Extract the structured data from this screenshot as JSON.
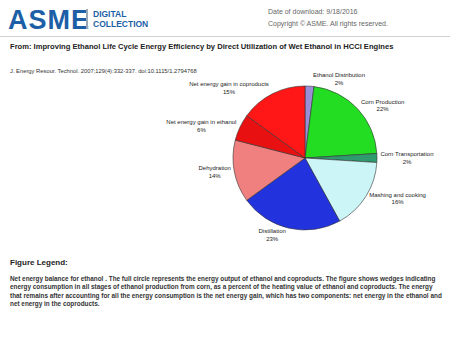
{
  "header": {
    "logo": "ASME",
    "logo_sub": [
      "DIGITAL",
      "COLLECTION"
    ],
    "download_date": "Date of download: 9/18/2016",
    "copyright": "Copyright © ASME. All rights reserved."
  },
  "source": {
    "title": "From: Improving Ethanol Life Cycle Energy Efficiency by Direct Utilization of Wet Ethanol in HCCI Engines",
    "citation": "J. Energy Resour. Technol. 2007;129(4):332-337. doi:10.1115/1.2794768"
  },
  "chart_data": {
    "type": "pie",
    "categories": [
      "Ethanol Distribution",
      "Corn Production",
      "Corn Transportation",
      "Mashing and cooking",
      "Distillation",
      "Dehydration",
      "Net energy gain in ethanol",
      "Net energy gain in coproducts"
    ],
    "values": [
      2,
      22,
      2,
      16,
      23,
      14,
      6,
      15
    ],
    "value_labels": [
      "2%",
      "22%",
      "2%",
      "16%",
      "23%",
      "14%",
      "6%",
      "15%"
    ],
    "colors": [
      "#9a8fd6",
      "#22dd22",
      "#2e9a6e",
      "#ccf5f7",
      "#2233dd",
      "#f08080",
      "#e81010",
      "#ff1616"
    ],
    "data_labels": true
  },
  "figure_legend": {
    "heading": "Figure Legend:",
    "text": "Net energy balance for ethanol . The full circle represents the energy output of ethanol and coproducts. The figure shows wedges indicating energy consumption in all stages of ethanol production from corn, as a percent of the heating value of ethanol and coproducts. The energy that remains after accounting for all the energy consumption is the net energy gain, which has two components: net energy in the ethanol and net energy in the coproducts."
  }
}
